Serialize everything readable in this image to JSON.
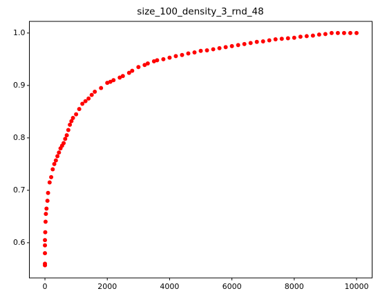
{
  "chart_data": {
    "type": "scatter",
    "title": "size_100_density_3_rnd_48",
    "color": "red",
    "x": [
      0,
      0,
      0,
      0,
      0,
      10,
      20,
      30,
      50,
      80,
      100,
      150,
      200,
      250,
      300,
      350,
      400,
      450,
      500,
      550,
      600,
      650,
      700,
      750,
      800,
      850,
      900,
      1000,
      1100,
      1200,
      1300,
      1400,
      1500,
      1600,
      1800,
      2000,
      2100,
      2200,
      2400,
      2500,
      2700,
      2800,
      3000,
      3200,
      3300,
      3500,
      3600,
      3800,
      4000,
      4200,
      4400,
      4600,
      4800,
      5000,
      5200,
      5400,
      5600,
      5800,
      6000,
      6200,
      6400,
      6600,
      6800,
      7000,
      7200,
      7400,
      7600,
      7800,
      8000,
      8200,
      8400,
      8600,
      8800,
      9000,
      9200,
      9400,
      9600,
      9800,
      10000
    ],
    "values": [
      0.557,
      0.56,
      0.58,
      0.595,
      0.605,
      0.62,
      0.64,
      0.655,
      0.665,
      0.68,
      0.695,
      0.715,
      0.725,
      0.74,
      0.75,
      0.757,
      0.765,
      0.772,
      0.78,
      0.785,
      0.79,
      0.798,
      0.805,
      0.815,
      0.825,
      0.832,
      0.838,
      0.845,
      0.855,
      0.865,
      0.87,
      0.875,
      0.882,
      0.888,
      0.895,
      0.905,
      0.907,
      0.91,
      0.915,
      0.918,
      0.924,
      0.928,
      0.935,
      0.939,
      0.942,
      0.946,
      0.948,
      0.95,
      0.953,
      0.956,
      0.958,
      0.961,
      0.963,
      0.966,
      0.967,
      0.969,
      0.971,
      0.973,
      0.975,
      0.977,
      0.979,
      0.981,
      0.983,
      0.984,
      0.986,
      0.988,
      0.989,
      0.99,
      0.991,
      0.993,
      0.994,
      0.995,
      0.997,
      0.998,
      1.0,
      1.0,
      1.0,
      1.0,
      1.0
    ],
    "xlim": [
      -500,
      10500
    ],
    "ylim": [
      0.5328,
      1.0222
    ],
    "xticks": [
      0,
      2000,
      4000,
      6000,
      8000,
      10000
    ],
    "yticks": [
      0.6,
      0.7,
      0.8,
      0.9,
      {
        "value": 1,
        "label": "1.0"
      }
    ]
  }
}
